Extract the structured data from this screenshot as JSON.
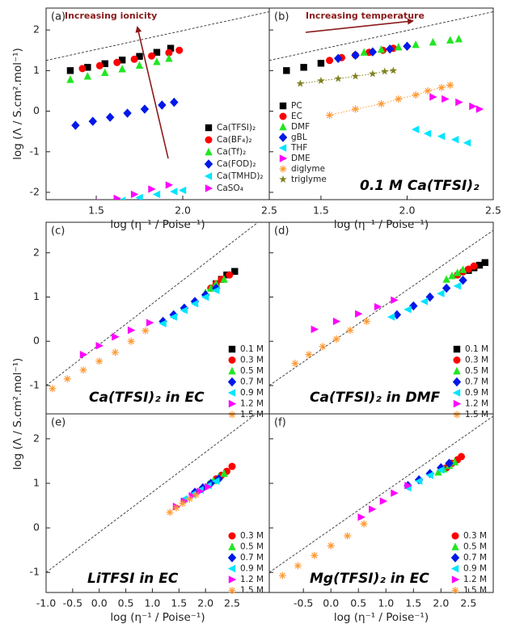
{
  "chart_data": [
    {
      "type": "scatter",
      "panel_label": "(a)",
      "ylabel": "log (Λ / S.cm².mol⁻¹)",
      "xlabel": "log (η⁻¹ / Poise⁻¹)",
      "xlim": [
        1.21,
        2.5
      ],
      "ylim": [
        -2.18,
        2.54
      ],
      "xticks": [
        1.5,
        {
          "value": 2,
          "label": "2.0"
        },
        2.5
      ],
      "yticks": [
        -2,
        -1,
        0,
        1,
        2
      ],
      "legend": "lower right",
      "annotations": [
        "Increasing ionicity"
      ],
      "reference_line": {
        "x": [
          1.21,
          2.5
        ],
        "y": [
          1.25,
          2.45
        ]
      },
      "series": [
        {
          "name": "Ca(TFSI)₂",
          "color": "#000000",
          "marker": "square",
          "x": [
            1.35,
            1.45,
            1.55,
            1.65,
            1.75,
            1.85,
            1.93
          ],
          "values": [
            1.0,
            1.08,
            1.17,
            1.26,
            1.35,
            1.45,
            1.55
          ]
        },
        {
          "name": "Ca(BF₄)₂",
          "color": "#ff0000",
          "marker": "circle",
          "x": [
            1.42,
            1.52,
            1.62,
            1.72,
            1.82,
            1.92,
            1.98
          ],
          "values": [
            1.05,
            1.12,
            1.2,
            1.28,
            1.36,
            1.44,
            1.5
          ]
        },
        {
          "name": "Ca(Tf)₂",
          "color": "#22e622",
          "marker": "triangle-up",
          "x": [
            1.35,
            1.45,
            1.55,
            1.65,
            1.75,
            1.85,
            1.92
          ],
          "values": [
            0.78,
            0.86,
            0.95,
            1.04,
            1.13,
            1.22,
            1.3
          ]
        },
        {
          "name": "Ca(FOD)₂",
          "color": "#0018e8",
          "marker": "diamond",
          "x": [
            1.38,
            1.48,
            1.58,
            1.68,
            1.78,
            1.88,
            1.95
          ],
          "values": [
            -0.35,
            -0.25,
            -0.15,
            -0.05,
            0.05,
            0.15,
            0.22
          ]
        },
        {
          "name": "Ca(TMHD)₂",
          "color": "#00e5ff",
          "marker": "triangle-left",
          "x": [
            1.45,
            1.55,
            1.65,
            1.75,
            1.85,
            1.95,
            2.0
          ],
          "values": [
            -2.35,
            -2.28,
            -2.2,
            -2.13,
            -2.05,
            -1.98,
            -1.95
          ]
        },
        {
          "name": "CaSO₄",
          "color": "#ff00ff",
          "marker": "triangle-right",
          "x": [
            1.42,
            1.52,
            1.62,
            1.72,
            1.82,
            1.92
          ],
          "values": [
            -2.35,
            -2.25,
            -2.15,
            -2.05,
            -1.92,
            -1.82
          ]
        }
      ]
    },
    {
      "type": "scatter",
      "panel_label": "(b)",
      "xlabel": "log (η⁻¹ / Poise⁻¹)",
      "xlim": [
        1.2,
        2.5
      ],
      "ylim": [
        -2.18,
        2.54
      ],
      "xticks": [
        1.5,
        {
          "value": 2,
          "label": "2.0"
        },
        2.5
      ],
      "legend": "lower left",
      "annotations": [
        "Increasing temperature",
        "0.1 M Ca(TFSI)₂"
      ],
      "reference_line": {
        "x": [
          1.2,
          2.5
        ],
        "y": [
          1.25,
          2.45
        ]
      },
      "series": [
        {
          "name": "PC",
          "color": "#000000",
          "marker": "square",
          "x": [
            1.3,
            1.4,
            1.5
          ],
          "values": [
            1.0,
            1.08,
            1.18
          ]
        },
        {
          "name": "EC",
          "color": "#ff0000",
          "marker": "circle",
          "x": [
            1.55,
            1.62,
            1.7,
            1.78,
            1.86,
            1.92
          ],
          "values": [
            1.25,
            1.32,
            1.38,
            1.45,
            1.5,
            1.55
          ]
        },
        {
          "name": "DMF",
          "color": "#22e622",
          "marker": "triangle-up",
          "x": [
            1.75,
            1.85,
            1.95,
            2.05,
            2.15,
            2.25,
            2.3
          ],
          "values": [
            1.45,
            1.52,
            1.58,
            1.64,
            1.7,
            1.75,
            1.78
          ]
        },
        {
          "name": "gBL",
          "color": "#0018e8",
          "marker": "diamond",
          "x": [
            1.6,
            1.7,
            1.8,
            1.9,
            2.0
          ],
          "values": [
            1.3,
            1.38,
            1.46,
            1.53,
            1.6
          ]
        },
        {
          "name": "THF",
          "color": "#00e5ff",
          "marker": "triangle-left",
          "x": [
            2.05,
            2.12,
            2.2,
            2.28,
            2.35
          ],
          "values": [
            -0.45,
            -0.55,
            -0.62,
            -0.7,
            -0.78
          ]
        },
        {
          "name": "DME",
          "color": "#ff00ff",
          "marker": "triangle-right",
          "x": [
            2.15,
            2.22,
            2.3,
            2.38,
            2.42
          ],
          "values": [
            0.35,
            0.3,
            0.22,
            0.12,
            0.05
          ]
        },
        {
          "name": "diglyme",
          "color": "#ff9933",
          "marker": "asterisk",
          "line": "dotted",
          "x": [
            1.55,
            1.7,
            1.85,
            1.95,
            2.05,
            2.12,
            2.2,
            2.25
          ],
          "values": [
            -0.1,
            0.05,
            0.18,
            0.3,
            0.4,
            0.5,
            0.58,
            0.64
          ]
        },
        {
          "name": "triglyme",
          "color": "#808020",
          "marker": "star",
          "line": "dotted",
          "x": [
            1.38,
            1.5,
            1.6,
            1.7,
            1.8,
            1.87,
            1.92
          ],
          "values": [
            0.68,
            0.75,
            0.8,
            0.86,
            0.92,
            0.98,
            1.0
          ]
        }
      ]
    },
    {
      "type": "scatter",
      "panel_label": "(c)",
      "ylabel": "log (Λ / S.cm².mol⁻¹)",
      "xlim": [
        -1.0,
        3.2
      ],
      "ylim": [
        -1.64,
        2.69
      ],
      "yticks": [
        -1,
        0,
        1,
        2
      ],
      "legend": "lower right",
      "annotations": [
        "Ca(TFSI)₂ in EC"
      ],
      "reference_line": {
        "x": [
          -1.0,
          3.0
        ],
        "y": [
          -1.0,
          2.7
        ]
      },
      "series": [
        {
          "name": "0.1 M",
          "color": "#000000",
          "marker": "square",
          "x": [
            2.2,
            2.3,
            2.4,
            2.55
          ],
          "values": [
            1.3,
            1.4,
            1.5,
            1.58
          ]
        },
        {
          "name": "0.3 M",
          "color": "#ff0000",
          "marker": "circle",
          "x": [
            2.1,
            2.2,
            2.3,
            2.45
          ],
          "values": [
            1.2,
            1.3,
            1.4,
            1.5
          ]
        },
        {
          "name": "0.5 M",
          "color": "#22e622",
          "marker": "triangle-up",
          "x": [
            2.0,
            2.1,
            2.2,
            2.35
          ],
          "values": [
            1.1,
            1.2,
            1.3,
            1.4
          ]
        },
        {
          "name": "0.7 M",
          "color": "#0018e8",
          "marker": "diamond",
          "x": [
            1.2,
            1.4,
            1.6,
            1.8,
            2.0,
            2.2
          ],
          "values": [
            0.45,
            0.6,
            0.75,
            0.9,
            1.05,
            1.2
          ]
        },
        {
          "name": "0.9 M",
          "color": "#00e5ff",
          "marker": "triangle-left",
          "x": [
            1.2,
            1.4,
            1.6,
            1.8,
            2.0,
            2.2
          ],
          "values": [
            0.4,
            0.55,
            0.7,
            0.85,
            1.0,
            1.15
          ]
        },
        {
          "name": "1.2 M",
          "color": "#ff00ff",
          "marker": "triangle-right",
          "x": [
            -0.3,
            0.0,
            0.3,
            0.6,
            0.95
          ],
          "values": [
            -0.3,
            -0.1,
            0.1,
            0.25,
            0.42
          ]
        },
        {
          "name": "1.5 M",
          "color": "#ff9933",
          "marker": "asterisk",
          "x": [
            -0.88,
            -0.6,
            -0.3,
            0.0,
            0.3,
            0.6,
            0.87
          ],
          "values": [
            -1.07,
            -0.85,
            -0.65,
            -0.45,
            -0.25,
            0.0,
            0.24
          ]
        }
      ]
    },
    {
      "type": "scatter",
      "panel_label": "(d)",
      "xlim": [
        -1.12,
        2.95
      ],
      "ylim": [
        -1.64,
        2.69
      ],
      "legend": "lower right",
      "annotations": [
        "Ca(TFSI)₂ in DMF"
      ],
      "reference_line": {
        "x": [
          -1.12,
          2.94
        ],
        "y": [
          -1.0,
          2.5
        ]
      },
      "series": [
        {
          "name": "0.1 M",
          "color": "#000000",
          "marker": "square",
          "x": [
            2.5,
            2.6,
            2.7,
            2.8
          ],
          "values": [
            1.6,
            1.66,
            1.72,
            1.78
          ]
        },
        {
          "name": "0.3 M",
          "color": "#ff0000",
          "marker": "circle",
          "x": [
            2.3,
            2.4,
            2.5,
            2.6
          ],
          "values": [
            1.5,
            1.57,
            1.63,
            1.7
          ]
        },
        {
          "name": "0.5 M",
          "color": "#22e622",
          "marker": "triangle-up",
          "x": [
            2.1,
            2.2,
            2.3,
            2.4
          ],
          "values": [
            1.4,
            1.48,
            1.55,
            1.62
          ]
        },
        {
          "name": "0.7 M",
          "color": "#0018e8",
          "marker": "diamond",
          "x": [
            1.2,
            1.5,
            1.8,
            2.1,
            2.4
          ],
          "values": [
            0.6,
            0.8,
            1.0,
            1.2,
            1.38
          ]
        },
        {
          "name": "0.9 M",
          "color": "#00e5ff",
          "marker": "triangle-left",
          "x": [
            1.1,
            1.4,
            1.7,
            2.0,
            2.3
          ],
          "values": [
            0.55,
            0.72,
            0.9,
            1.08,
            1.25
          ]
        },
        {
          "name": "1.2 M",
          "color": "#ff00ff",
          "marker": "triangle-right",
          "x": [
            -0.3,
            0.1,
            0.5,
            0.85,
            1.15
          ],
          "values": [
            0.27,
            0.45,
            0.62,
            0.78,
            0.93
          ]
        },
        {
          "name": "1.5 M",
          "color": "#ff9933",
          "marker": "asterisk",
          "x": [
            -0.65,
            -0.4,
            -0.15,
            0.1,
            0.35,
            0.65
          ],
          "values": [
            -0.5,
            -0.3,
            -0.12,
            0.05,
            0.25,
            0.45
          ]
        }
      ]
    },
    {
      "type": "scatter",
      "panel_label": "(e)",
      "xlabel": "log (η⁻¹ / Poise⁻¹)",
      "xlim": [
        -1.0,
        3.2
      ],
      "ylim": [
        -1.45,
        2.56
      ],
      "xticks": [
        {
          "value": -1,
          "label": "-1.0"
        },
        -0.5,
        {
          "value": 0,
          "label": "0.0"
        },
        0.5,
        {
          "value": 1,
          "label": "1.0"
        },
        1.5,
        {
          "value": 2,
          "label": "2.0"
        },
        2.5
      ],
      "yticks": [
        -1,
        0,
        1,
        2
      ],
      "legend": "lower right",
      "annotations": [
        "LiTFSI in EC"
      ],
      "reference_line": {
        "x": [
          -1.0,
          3.0
        ],
        "y": [
          -1.0,
          2.6
        ]
      },
      "series": [
        {
          "name": "0.3 M",
          "color": "#ff0000",
          "marker": "circle",
          "x": [
            2.2,
            2.3,
            2.4,
            2.5
          ],
          "values": [
            1.1,
            1.18,
            1.27,
            1.38
          ]
        },
        {
          "name": "0.5 M",
          "color": "#22e622",
          "marker": "triangle-up",
          "x": [
            2.05,
            2.15,
            2.25,
            2.35
          ],
          "values": [
            0.98,
            1.06,
            1.14,
            1.22
          ]
        },
        {
          "name": "0.7 M",
          "color": "#0018e8",
          "marker": "diamond",
          "x": [
            1.8,
            1.95,
            2.1,
            2.25
          ],
          "values": [
            0.8,
            0.9,
            1.0,
            1.1
          ]
        },
        {
          "name": "0.9 M",
          "color": "#00e5ff",
          "marker": "triangle-left",
          "x": [
            1.6,
            1.75,
            1.9,
            2.05,
            2.2
          ],
          "values": [
            0.65,
            0.75,
            0.85,
            0.95,
            1.05
          ]
        },
        {
          "name": "1.2 M",
          "color": "#ff00ff",
          "marker": "triangle-right",
          "x": [
            1.45,
            1.6,
            1.75,
            1.9,
            2.05
          ],
          "values": [
            0.48,
            0.6,
            0.72,
            0.82,
            0.92
          ]
        },
        {
          "name": "1.5 M",
          "color": "#ff9933",
          "marker": "asterisk",
          "x": [
            1.33,
            1.45,
            1.57,
            1.7,
            1.82
          ],
          "values": [
            0.35,
            0.45,
            0.55,
            0.65,
            0.74
          ]
        }
      ]
    },
    {
      "type": "scatter",
      "panel_label": "(f)",
      "xlabel": "log (η⁻¹ / Poise⁻¹)",
      "xlim": [
        -1.12,
        2.95
      ],
      "ylim": [
        -1.45,
        2.56
      ],
      "xticks": [
        -0.5,
        {
          "value": 0,
          "label": "0.0"
        },
        0.5,
        {
          "value": 1,
          "label": "1.0"
        },
        1.5,
        {
          "value": 2,
          "label": "2.0"
        },
        2.5
      ],
      "legend": "lower right",
      "annotations": [
        "Mg(TFSI)₂ in EC"
      ],
      "reference_line": {
        "x": [
          -1.12,
          2.94
        ],
        "y": [
          -1.0,
          2.5
        ]
      },
      "series": [
        {
          "name": "0.3 M",
          "color": "#ff0000",
          "marker": "circle",
          "x": [
            2.1,
            2.2,
            2.3,
            2.37
          ],
          "values": [
            1.35,
            1.45,
            1.53,
            1.6
          ]
        },
        {
          "name": "0.5 M",
          "color": "#22e622",
          "marker": "triangle-up",
          "x": [
            1.95,
            2.05,
            2.15,
            2.25
          ],
          "values": [
            1.25,
            1.32,
            1.4,
            1.48
          ]
        },
        {
          "name": "0.7 M",
          "color": "#0018e8",
          "marker": "diamond",
          "x": [
            1.4,
            1.6,
            1.8,
            2.0,
            2.15
          ],
          "values": [
            0.95,
            1.08,
            1.22,
            1.35,
            1.45
          ]
        },
        {
          "name": "0.9 M",
          "color": "#00e5ff",
          "marker": "triangle-left",
          "x": [
            1.4,
            1.6,
            1.8,
            2.0
          ],
          "values": [
            0.9,
            1.05,
            1.18,
            1.3
          ]
        },
        {
          "name": "1.2 M",
          "color": "#ff00ff",
          "marker": "triangle-right",
          "x": [
            0.55,
            0.75,
            0.95,
            1.15,
            1.4
          ],
          "values": [
            0.24,
            0.42,
            0.6,
            0.78,
            0.95
          ]
        },
        {
          "name": "1.5 M",
          "color": "#ff9933",
          "marker": "asterisk",
          "x": [
            -0.88,
            -0.6,
            -0.3,
            0.0,
            0.3,
            0.6
          ],
          "values": [
            -1.07,
            -0.85,
            -0.62,
            -0.4,
            -0.18,
            0.09
          ]
        }
      ]
    }
  ]
}
